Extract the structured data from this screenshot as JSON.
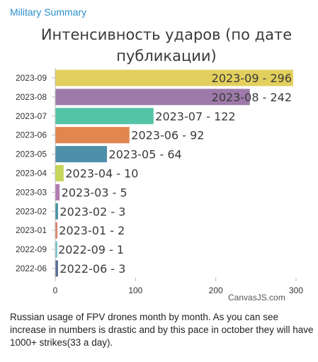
{
  "header": {
    "source_label": "Military Summary"
  },
  "chart_data": {
    "type": "bar",
    "orientation": "horizontal",
    "title_lines": [
      "Интенсивность ударов (по дате",
      "публикации)"
    ],
    "categories": [
      "2023-09",
      "2023-08",
      "2023-07",
      "2023-06",
      "2023-05",
      "2023-04",
      "2023-03",
      "2023-02",
      "2023-01",
      "2022-09",
      "2022-06"
    ],
    "values": [
      296,
      242,
      122,
      92,
      64,
      10,
      5,
      3,
      2,
      1,
      3
    ],
    "data_labels": [
      "2023-09 - 296",
      "2023-08 - 242",
      "2023-07 - 122",
      "2023-06 - 92",
      "2023-05 - 64",
      "2023-04 - 10",
      "2023-03 - 5",
      "2023-02 - 3",
      "2023-01 - 2",
      "2022-09 - 1",
      "2022-06 - 3"
    ],
    "colors": [
      "#e3cf5d",
      "#9d7aa9",
      "#54c4a7",
      "#e0864e",
      "#4e8faa",
      "#c6d65a",
      "#b07db2",
      "#4a94a4",
      "#df7f6f",
      "#7cc7cf",
      "#5a6f98"
    ],
    "xlim": [
      0,
      300
    ],
    "x_ticks": [
      0,
      100,
      200,
      300
    ],
    "grid": false,
    "watermark": "CanvasJS.com"
  },
  "caption": "Russian usage of FPV drones month by month. As you can see increase in numbers is drastic and by this pace in october they will have 1000+ strikes(33 a day)."
}
